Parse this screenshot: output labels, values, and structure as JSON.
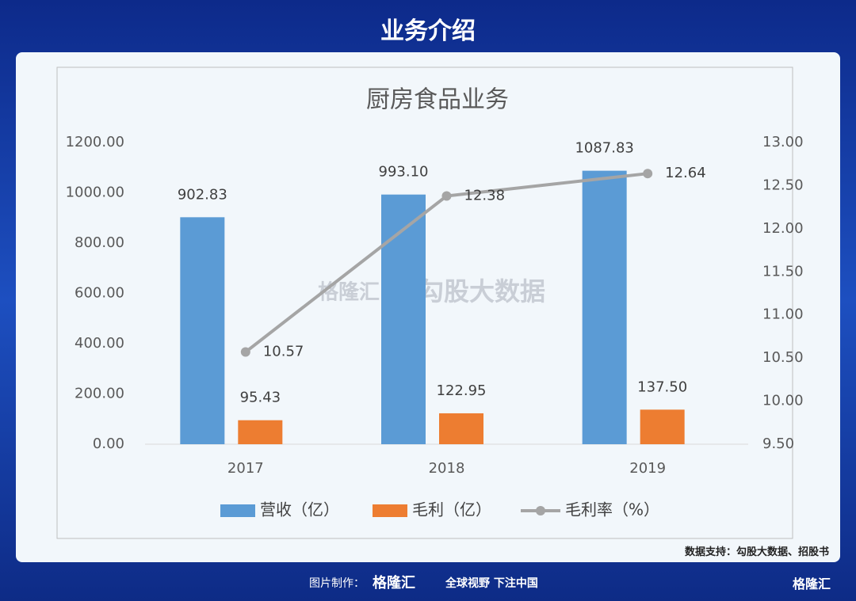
{
  "header": {
    "title": "业务介绍"
  },
  "chart_data": {
    "type": "bar",
    "title": "厨房食品业务",
    "categories": [
      "2017",
      "2018",
      "2019"
    ],
    "series": [
      {
        "name": "营收（亿）",
        "color": "#5b9bd5",
        "type": "bar",
        "values": [
          902.83,
          993.1,
          1087.83
        ],
        "value_labels": [
          "902.83",
          "993.10",
          "1087.83"
        ]
      },
      {
        "name": "毛利（亿）",
        "color": "#ed7d31",
        "type": "bar",
        "values": [
          95.43,
          122.95,
          137.5
        ],
        "value_labels": [
          "95.43",
          "122.95",
          "137.50"
        ]
      },
      {
        "name": "毛利率（%）",
        "color": "#a5a5a5",
        "type": "line",
        "axis": "y2",
        "values": [
          10.57,
          12.38,
          12.64
        ]
      }
    ],
    "ylim": [
      0,
      1200
    ],
    "yticks": [
      {
        "value": 0,
        "label": "0.00"
      },
      {
        "value": 200,
        "label": "200.00"
      },
      {
        "value": 400,
        "label": "400.00"
      },
      {
        "value": 600,
        "label": "600.00"
      },
      {
        "value": 800,
        "label": "800.00"
      },
      {
        "value": 1000,
        "label": "1000.00"
      },
      {
        "value": 1200,
        "label": "1200.00"
      }
    ],
    "y2lim": [
      9.5,
      13
    ],
    "y2ticks": [
      {
        "value": 9.5,
        "label": "9.50"
      },
      {
        "value": 10,
        "label": "10.00"
      },
      {
        "value": 10.5,
        "label": "10.50"
      },
      {
        "value": 11,
        "label": "11.00"
      },
      {
        "value": 11.5,
        "label": "11.50"
      },
      {
        "value": 12,
        "label": "12.00"
      },
      {
        "value": 12.5,
        "label": "12.50"
      },
      {
        "value": 13,
        "label": "13.00"
      }
    ],
    "grid": false,
    "legend": "bottom"
  },
  "watermark": {
    "brand": "格隆汇",
    "partner": "勾股大数据"
  },
  "source": "数据支持：勾股大数据、招股书",
  "footer": {
    "made_by": "图片制作：",
    "brand": "格隆汇",
    "slogan": "全球视野 下注中国",
    "corner_brand": "格隆汇"
  }
}
